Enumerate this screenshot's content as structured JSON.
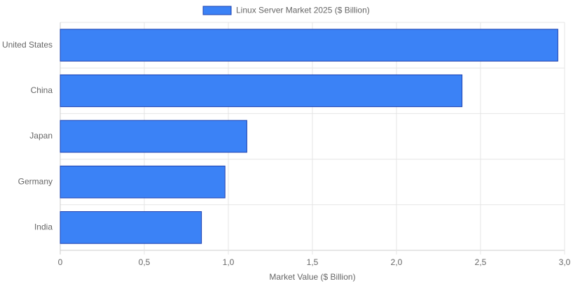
{
  "chart_data": {
    "type": "hbar",
    "categories": [
      "United States",
      "China",
      "Japan",
      "Germany",
      "India"
    ],
    "series": [
      {
        "name": "Linux Server Market 2025 ($ Billion)",
        "color": "#3b82f6",
        "border": "#1e40af",
        "values": [
          2.96,
          2.39,
          1.11,
          0.98,
          0.84
        ]
      }
    ],
    "xlabel": "Market Value ($ Billion)",
    "xlim": [
      0,
      3
    ],
    "xticks": [
      0,
      {
        "value": 0.5,
        "label": "0,5"
      },
      {
        "value": 1,
        "label": "1,0"
      },
      {
        "value": 1.5,
        "label": "1,5"
      },
      {
        "value": 2,
        "label": "2,0"
      },
      {
        "value": 2.5,
        "label": "2,5"
      },
      {
        "value": 3,
        "label": "3,0"
      }
    ],
    "grid": true,
    "legend": "top"
  }
}
